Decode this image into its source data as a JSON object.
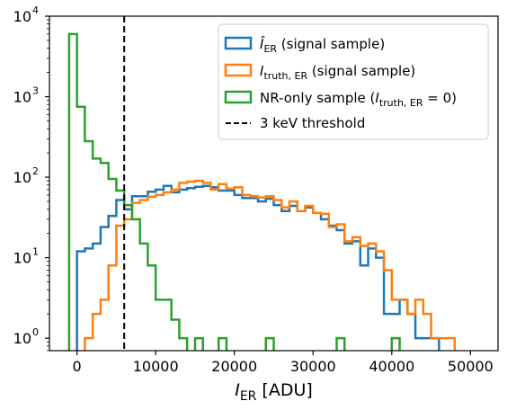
{
  "chart_data": {
    "type": "histogram",
    "xlabel": "I_ER [ADU]",
    "ylabel": "",
    "yscale": "log",
    "xlim": [
      -3500,
      53500
    ],
    "ylim": [
      0.7,
      10000
    ],
    "bin_width": 1000,
    "x_ticks": [
      0,
      10000,
      20000,
      30000,
      40000,
      50000
    ],
    "x_tick_labels": [
      "0",
      "10000",
      "20000",
      "30000",
      "40000",
      "50000"
    ],
    "y_ticks": [
      1,
      10,
      100,
      1000,
      10000
    ],
    "y_tick_labels": [
      "10",
      "10",
      "10",
      "10",
      "10"
    ],
    "y_tick_exponents": [
      "0",
      "1",
      "2",
      "3",
      "4"
    ],
    "threshold": {
      "x": 6000,
      "label": "3 keV threshold",
      "color": "#000000",
      "style": "dashed"
    },
    "legend_position": "upper right",
    "series": [
      {
        "name": "Î_ER (signal sample)",
        "legend_main": "Î",
        "legend_sub": "ER",
        "legend_rest": " (signal sample)",
        "color": "#1f77b4",
        "x_start": -1000,
        "values": [
          0,
          12,
          13,
          15,
          24,
          33,
          52,
          40,
          58,
          58,
          66,
          70,
          78,
          65,
          70,
          73,
          76,
          78,
          75,
          68,
          68,
          60,
          55,
          55,
          50,
          54,
          45,
          38,
          44,
          38,
          42,
          36,
          30,
          25,
          22,
          15,
          16,
          8,
          13,
          10,
          2,
          2,
          3,
          2,
          1,
          1,
          1,
          0,
          0
        ]
      },
      {
        "name": "I_truth,ER (signal sample)",
        "legend_main": "I",
        "legend_sub": "truth, ER",
        "legend_rest": " (signal sample)",
        "color": "#ff7f0e",
        "x_start": -1000,
        "values": [
          0,
          0,
          1,
          2,
          3,
          8,
          25,
          30,
          48,
          52,
          57,
          60,
          65,
          70,
          85,
          88,
          90,
          85,
          70,
          82,
          72,
          75,
          60,
          58,
          56,
          58,
          52,
          42,
          50,
          38,
          44,
          36,
          35,
          24,
          26,
          16,
          18,
          14,
          15,
          12,
          7,
          3,
          3,
          2,
          3,
          2,
          1,
          1,
          1,
          0
        ]
      },
      {
        "name": "NR-only sample (I_truth,ER = 0)",
        "legend_main": "NR-only sample (",
        "legend_main2": "I",
        "legend_sub": "truth, ER",
        "legend_rest": " = 0)",
        "color": "#2ca02c",
        "x_start": -1000,
        "values": [
          6000,
          750,
          280,
          170,
          150,
          95,
          68,
          45,
          30,
          15,
          8,
          3,
          3,
          1.7,
          1,
          0,
          1,
          0,
          0,
          1,
          0,
          0,
          0,
          0,
          0,
          1,
          0,
          0,
          0,
          0,
          0,
          0,
          0,
          0,
          1,
          0,
          0,
          0,
          0,
          0,
          0,
          1,
          0,
          0
        ]
      }
    ]
  }
}
